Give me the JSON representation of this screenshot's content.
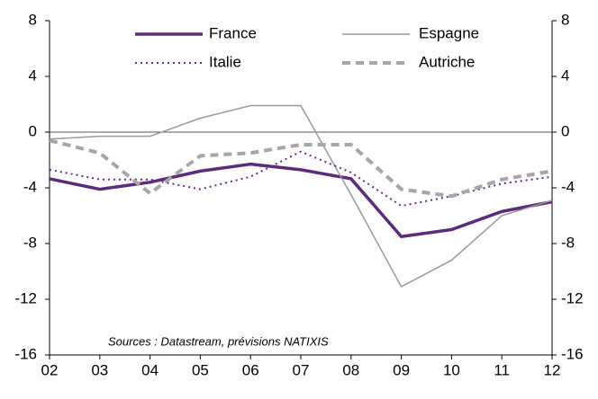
{
  "chart_data": {
    "type": "line",
    "categories": [
      "02",
      "03",
      "04",
      "05",
      "06",
      "07",
      "08",
      "09",
      "10",
      "11",
      "12"
    ],
    "series": [
      {
        "name": "France",
        "color": "#5c2b7d",
        "style": "solid",
        "width": 3.5,
        "values": [
          -3.35,
          -4.1,
          -3.6,
          -2.8,
          -2.3,
          -2.7,
          -3.35,
          -7.5,
          -7.0,
          -5.7,
          -5.0
        ]
      },
      {
        "name": "Espagne",
        "color": "#999999",
        "style": "solid",
        "width": 1.5,
        "values": [
          -0.5,
          -0.3,
          -0.3,
          1.0,
          1.9,
          1.9,
          -4.5,
          -11.1,
          -9.2,
          -6.0,
          -4.9
        ]
      },
      {
        "name": "Italie",
        "color": "#6a2a8a",
        "style": "dotted",
        "width": 2,
        "values": [
          -2.7,
          -3.4,
          -3.4,
          -4.1,
          -3.2,
          -1.4,
          -2.9,
          -5.3,
          -4.6,
          -3.7,
          -3.2
        ]
      },
      {
        "name": "Autriche",
        "color": "#a6a6a6",
        "style": "dashed",
        "width": 4,
        "values": [
          -0.6,
          -1.5,
          -4.4,
          -1.7,
          -1.5,
          -0.9,
          -0.9,
          -4.1,
          -4.6,
          -3.4,
          -2.8
        ]
      }
    ],
    "ylim": [
      -16,
      8
    ],
    "yticks": [
      -16,
      -12,
      -8,
      -4,
      0,
      4,
      8
    ],
    "y2lim": [
      -16,
      8
    ],
    "y2ticks": [
      -16,
      -12,
      -8,
      -4,
      0,
      4,
      8
    ],
    "annotation": "Sources : Datastream, prévisions NATIXIS",
    "legend": "top"
  }
}
